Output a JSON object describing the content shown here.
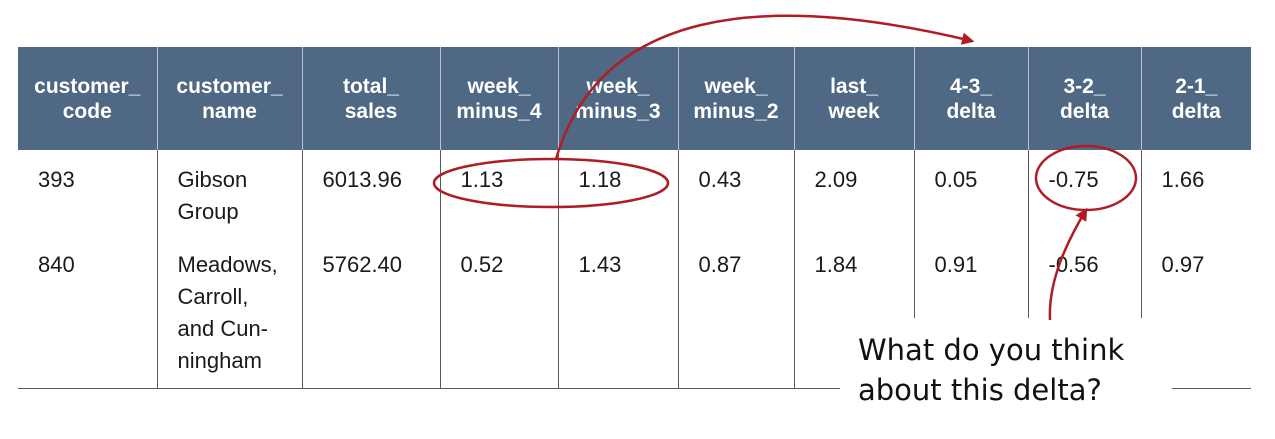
{
  "table": {
    "headers": [
      [
        "customer_",
        "code"
      ],
      [
        "customer_",
        "name"
      ],
      [
        "total_",
        "sales"
      ],
      [
        "week_",
        "minus_4"
      ],
      [
        "week_",
        "minus_3"
      ],
      [
        "week_",
        "minus_2"
      ],
      [
        "last_",
        "week"
      ],
      [
        "4-3_",
        "delta"
      ],
      [
        "3-2_",
        "delta"
      ],
      [
        "2-1_",
        "delta"
      ]
    ],
    "rows": [
      {
        "customer_code": "393",
        "customer_name": [
          "Gibson",
          "Group"
        ],
        "total_sales": "6013.96",
        "week_minus_4": "1.13",
        "week_minus_3": "1.18",
        "week_minus_2": "0.43",
        "last_week": "2.09",
        "delta_4_3": "0.05",
        "delta_3_2": "-0.75",
        "delta_2_1": "1.66"
      },
      {
        "customer_code": "840",
        "customer_name": [
          "Meadows,",
          "Carroll,",
          "and Cun-",
          "ningham"
        ],
        "total_sales": "5762.40",
        "week_minus_4": "0.52",
        "week_minus_3": "1.43",
        "week_minus_2": "0.87",
        "last_week": "1.84",
        "delta_4_3": "0.91",
        "delta_3_2": "-0.56",
        "delta_2_1": "0.97"
      }
    ]
  },
  "annotation": {
    "question_lines": [
      "What do you think",
      "about this delta?"
    ],
    "color": "#b01c24"
  },
  "colors": {
    "header_bg": "#4f6884",
    "header_text": "#ffffff"
  }
}
